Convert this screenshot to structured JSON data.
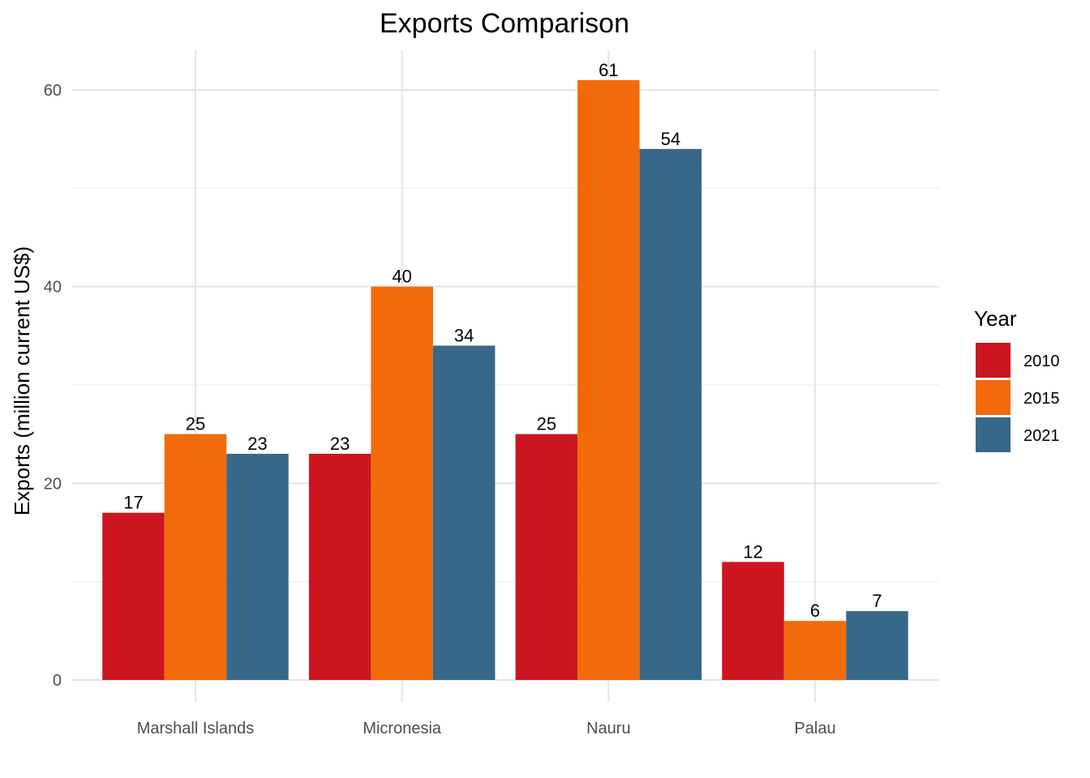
{
  "chart_data": {
    "type": "bar",
    "title": "Exports Comparison",
    "xlabel": "",
    "ylabel": "Exports (million current US$)",
    "categories": [
      "Marshall Islands",
      "Micronesia",
      "Nauru",
      "Palau"
    ],
    "series": [
      {
        "name": "2010",
        "color": "#cb1620",
        "values": [
          17,
          23,
          25,
          12
        ]
      },
      {
        "name": "2015",
        "color": "#f26a0a",
        "values": [
          25,
          40,
          61,
          6
        ]
      },
      {
        "name": "2021",
        "color": "#386889",
        "values": [
          23,
          34,
          54,
          7
        ]
      }
    ],
    "ylim": [
      0,
      64
    ],
    "yticks": [
      0,
      20,
      40,
      60
    ],
    "grid": true,
    "legend": {
      "title": "Year",
      "position": "right"
    }
  }
}
